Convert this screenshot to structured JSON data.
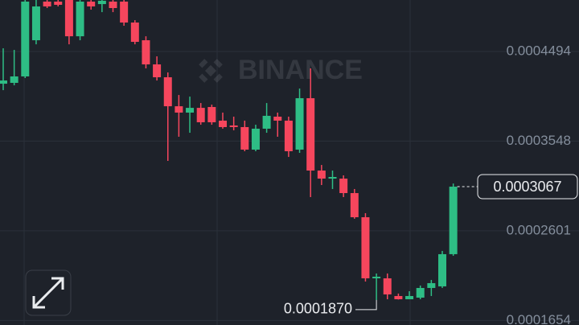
{
  "chart_data": {
    "type": "candlestick",
    "watermark": "BINANCE",
    "up_color": "#2ebd85",
    "down_color": "#f6465d",
    "ylim": [
      0.0001606,
      0.0005038
    ],
    "yticks": [
      0.0001654,
      0.0002601,
      0.0003548,
      0.0004494
    ],
    "grid": true,
    "open": [
      0.0004154,
      0.0004163,
      0.0004231,
      0.0004613,
      0.0005021,
      0.0005021,
      0.0005038,
      0.0004655,
      0.0005021,
      0.0004995,
      0.0005021,
      0.0005021,
      0.00048,
      0.0004613,
      0.0004358,
      0.0004222,
      0.0003916,
      0.0003849,
      0.0003899,
      0.0003908,
      0.0003764,
      0.0003713,
      0.0003696,
      0.0003458,
      0.0003679,
      0.0003806,
      0.0003764,
      0.0003458,
      0.0004001,
      0.0003237,
      0.0003152,
      0.0003152,
      0.0002999,
      0.0002744,
      0.0002099,
      0.0002099,
      0.0001912,
      0.0001878,
      0.0001895,
      0.0001997,
      0.0002014,
      0.0002354
    ],
    "close": [
      0.0004188,
      0.0004231,
      0.0005021,
      0.000497,
      0.000497,
      0.0004987,
      0.0004655,
      0.0005021,
      0.000497,
      0.000503,
      0.0004953,
      0.00048,
      0.0004596,
      0.0004358,
      0.0004222,
      0.0003916,
      0.0003849,
      0.0003899,
      0.0003747,
      0.0003747,
      0.0003696,
      0.0003696,
      0.0003458,
      0.0003679,
      0.0003815,
      0.0003764,
      0.0003441,
      0.0004001,
      0.0003237,
      0.0003152,
      0.0003169,
      0.0002999,
      0.0002744,
      0.0002099,
      0.0002116,
      0.0001929,
      0.0001878,
      0.0001912,
      0.0001997,
      0.0002048,
      0.0002354,
      0.0003067
    ],
    "high": [
      0.0004528,
      0.0004511,
      0.0005038,
      0.0005038,
      0.0005038,
      0.0005038,
      0.0005038,
      0.0005038,
      0.0005038,
      0.0005038,
      0.0005038,
      0.0005038,
      0.0004825,
      0.0004655,
      0.0004443,
      0.0004273,
      0.0004035,
      0.0004018,
      0.000395,
      0.0003933,
      0.0003849,
      0.0003806,
      0.0003764,
      0.0003721,
      0.000395,
      0.0003849,
      0.0003806,
      0.0004103,
      0.0004316,
      0.0003296,
      0.0003237,
      0.0003186,
      0.0003042,
      0.0002787,
      0.000215,
      0.000215,
      0.0001938,
      0.0001963,
      0.0002023,
      0.0002082,
      0.0002388,
      0.00031
    ],
    "low": [
      0.0004086,
      0.0004137,
      0.0004214,
      0.000457,
      0.0004953,
      0.000497,
      0.000457,
      0.0004613,
      0.0004936,
      0.000491,
      0.000491,
      0.0004766,
      0.000457,
      0.0004316,
      0.0004188,
      0.0003339,
      0.0003594,
      0.0003636,
      0.0003721,
      0.0003721,
      0.0003679,
      0.0003662,
      0.0003441,
      0.0003441,
      0.0003636,
      0.0003594,
      0.0003381,
      0.0003424,
      0.0002957,
      0.0003084,
      0.0003042,
      0.0002957,
      0.0002728,
      0.0002065,
      0.000187,
      0.0001878,
      0.0001875,
      0.000188,
      0.0001878,
      0.0001912,
      0.0001997,
      0.0002337
    ],
    "last_price": 0.0003067,
    "low_marker": {
      "value": 0.000187,
      "label": "0.0001870"
    }
  }
}
